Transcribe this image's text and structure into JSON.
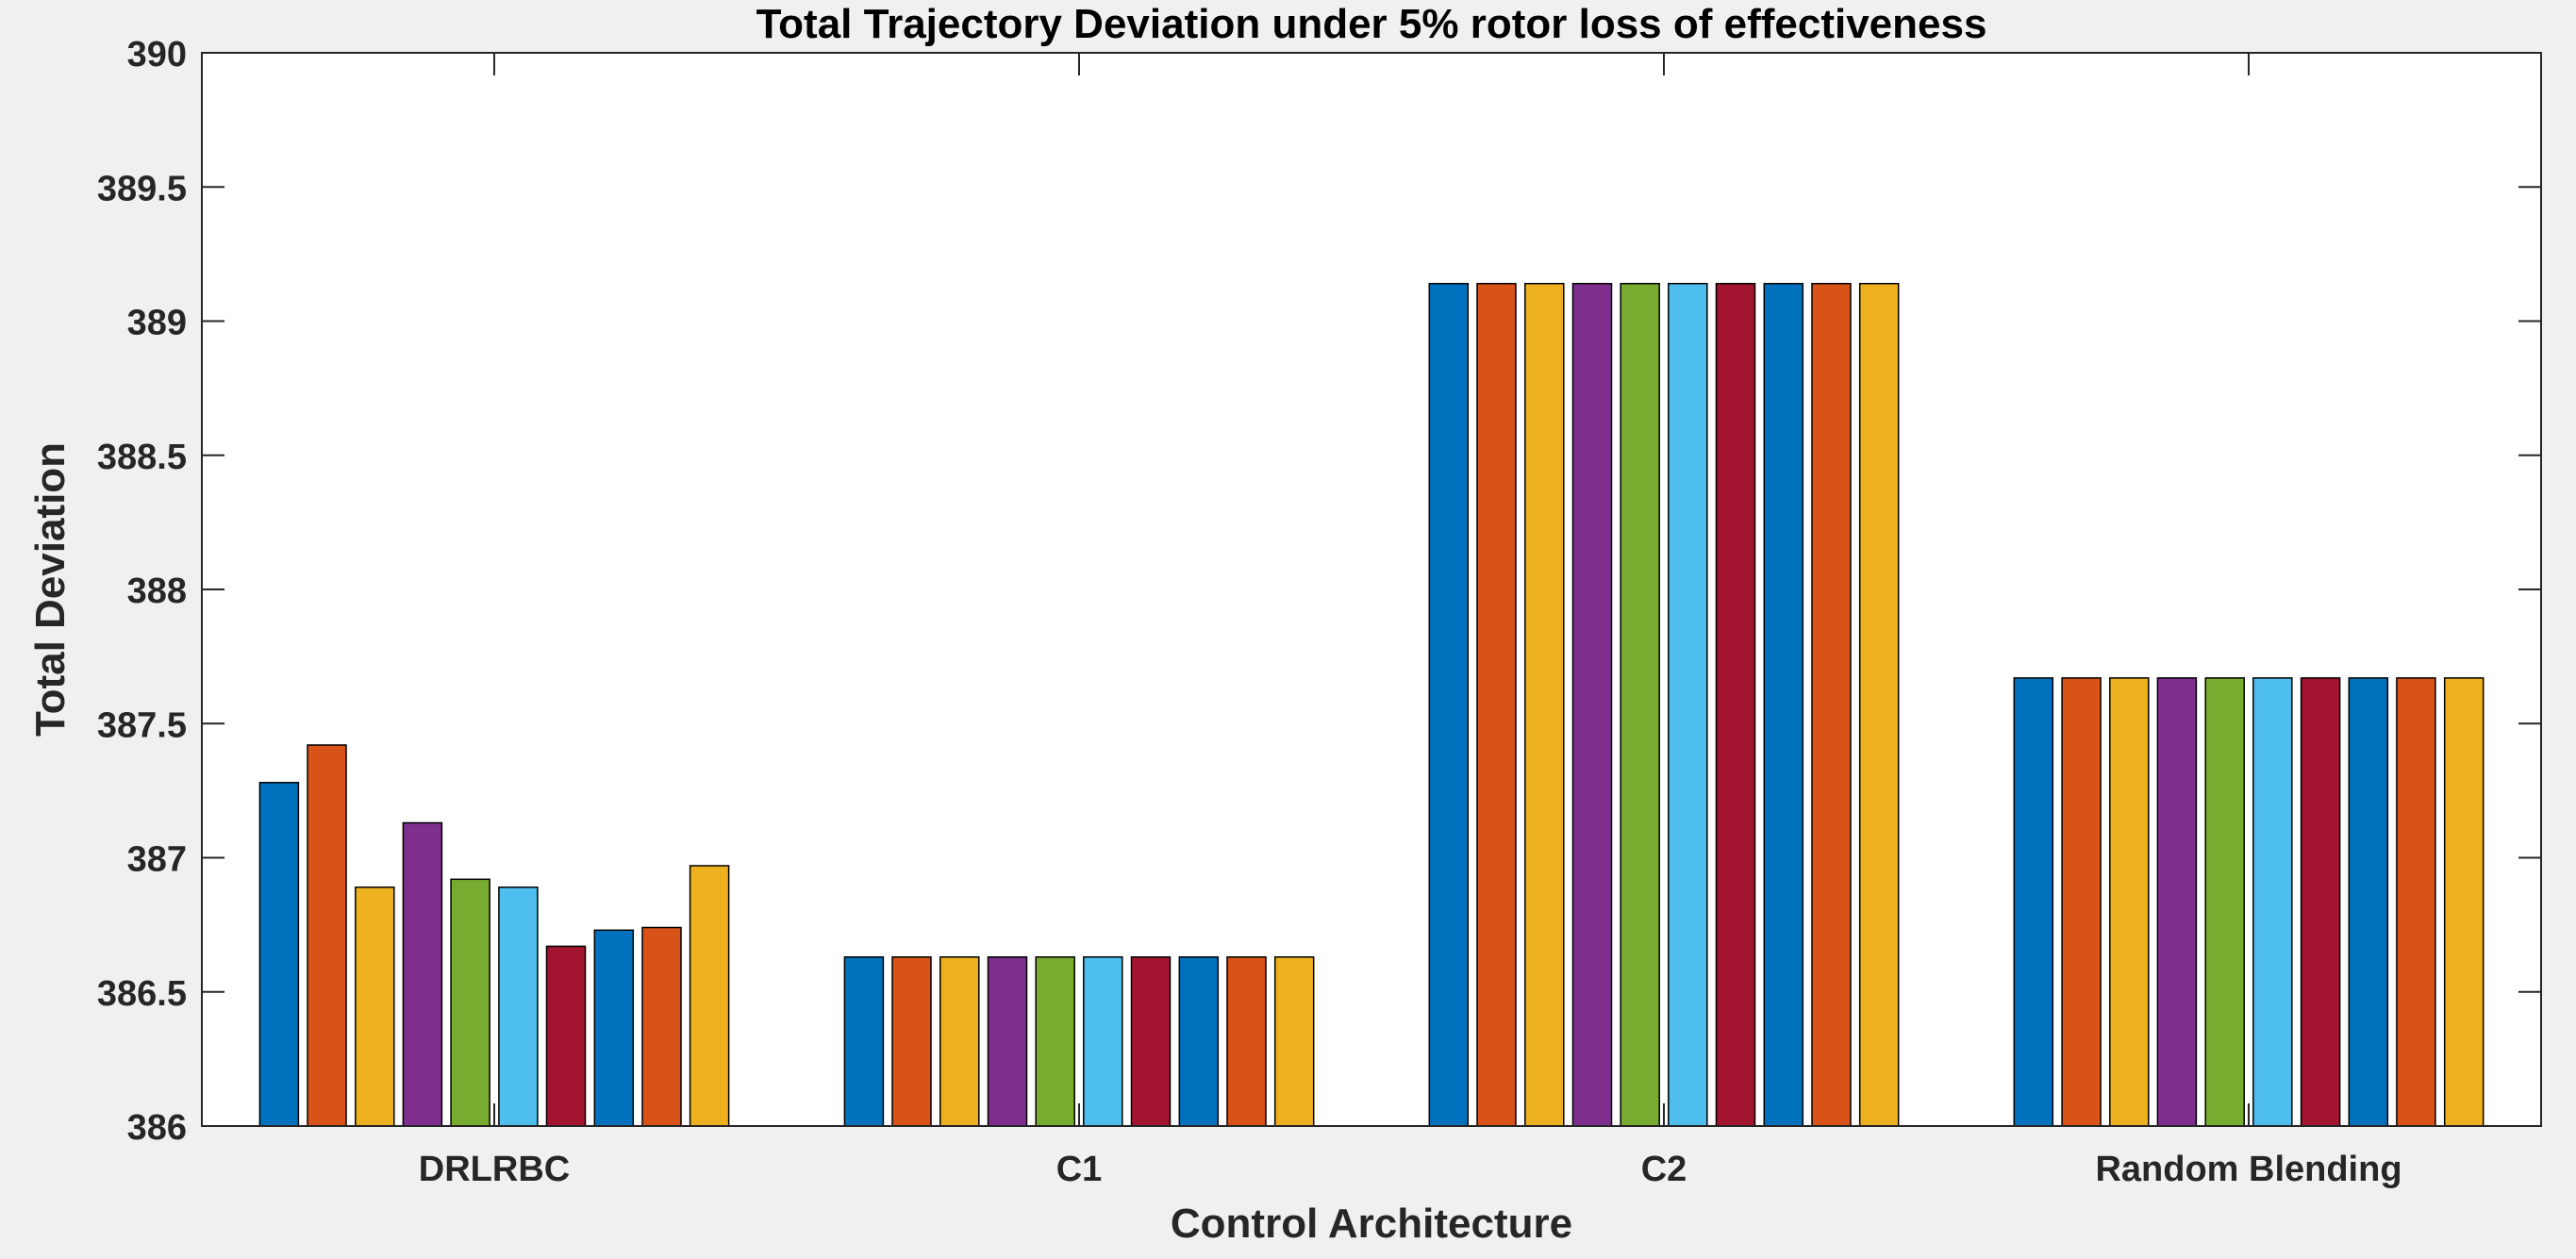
{
  "chart_data": {
    "type": "bar",
    "title": "Total Trajectory Deviation under 5% rotor loss of effectiveness",
    "xlabel": "Control Architecture",
    "ylabel": "Total Deviation",
    "ylim": [
      386,
      390
    ],
    "yticks": [
      "386",
      "386.5",
      "387",
      "387.5",
      "388",
      "388.5",
      "389",
      "389.5",
      "390"
    ],
    "grid": false,
    "categories": [
      "DRLRBC",
      "C1",
      "C2",
      "Random Blending"
    ],
    "colors": [
      "#0072BD",
      "#D95319",
      "#EDB120",
      "#7E2F8E",
      "#77AC30",
      "#4DBEEE",
      "#A2142F",
      "#0072BD",
      "#D95319",
      "#EDB120"
    ],
    "groups": [
      {
        "category": "DRLRBC",
        "values": [
          387.28,
          387.42,
          386.89,
          387.13,
          386.92,
          386.89,
          386.67,
          386.73,
          386.74,
          386.97
        ]
      },
      {
        "category": "C1",
        "values": [
          386.63,
          386.63,
          386.63,
          386.63,
          386.63,
          386.63,
          386.63,
          386.63,
          386.63,
          386.63
        ]
      },
      {
        "category": "C2",
        "values": [
          389.14,
          389.14,
          389.14,
          389.14,
          389.14,
          389.14,
          389.14,
          389.14,
          389.14,
          389.14
        ]
      },
      {
        "category": "Random Blending",
        "values": [
          387.67,
          387.67,
          387.67,
          387.67,
          387.67,
          387.67,
          387.67,
          387.67,
          387.67,
          387.67
        ]
      }
    ]
  }
}
